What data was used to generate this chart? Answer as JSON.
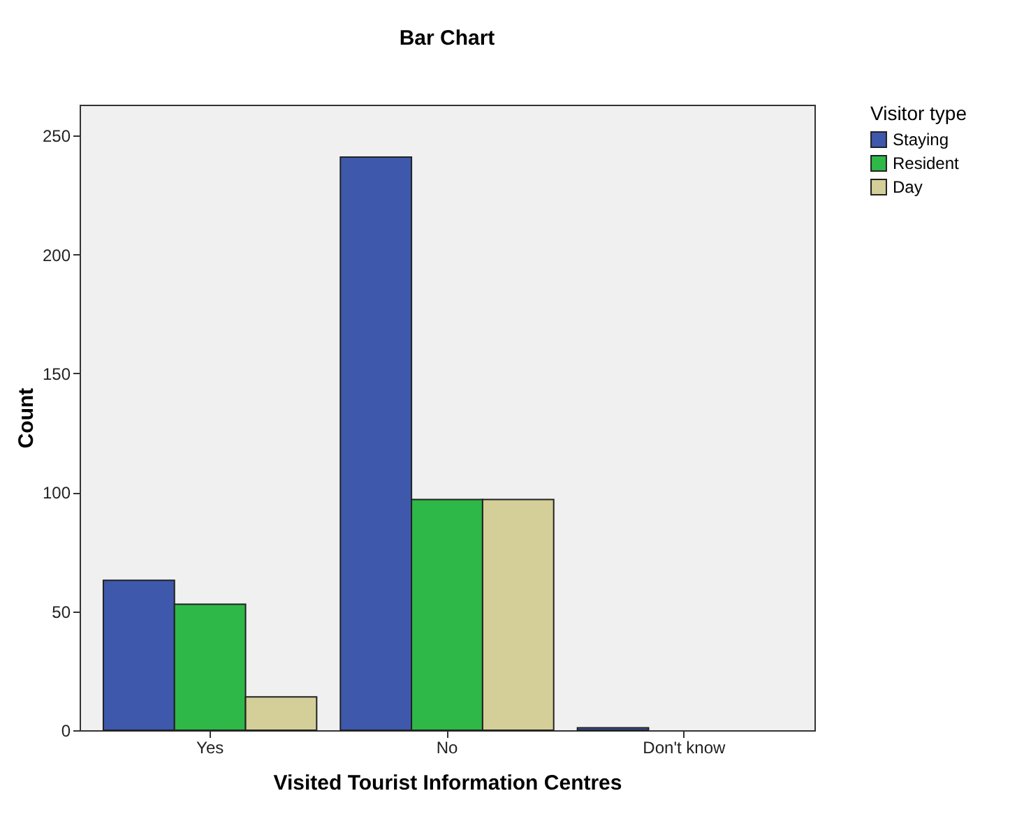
{
  "chart_data": {
    "type": "bar",
    "title": "Bar Chart",
    "xlabel": "Visited Tourist Information Centres",
    "ylabel": "Count",
    "legend_title": "Visitor type",
    "categories": [
      "Yes",
      "No",
      "Don't know"
    ],
    "series": [
      {
        "name": "Staying",
        "color": "#3e58ac",
        "values": [
          63,
          241,
          1
        ]
      },
      {
        "name": "Resident",
        "color": "#2eb848",
        "values": [
          53,
          97,
          null
        ]
      },
      {
        "name": "Day",
        "color": "#d4cf98",
        "values": [
          14,
          97,
          null
        ]
      }
    ],
    "ylim": [
      0,
      263
    ],
    "yticks": [
      0,
      50,
      100,
      150,
      200,
      250
    ],
    "grid": false,
    "legend": "top right"
  }
}
